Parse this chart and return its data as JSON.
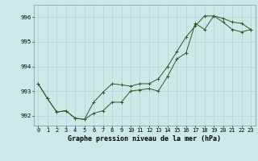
{
  "title": "Graphe pression niveau de la mer (hPa)",
  "bg_color": "#cce8e8",
  "grid_color": "#aed4d4",
  "line_color": "#2d5a27",
  "x_labels": [
    "0",
    "1",
    "2",
    "3",
    "4",
    "5",
    "6",
    "7",
    "8",
    "9",
    "10",
    "11",
    "12",
    "13",
    "14",
    "15",
    "16",
    "17",
    "18",
    "19",
    "20",
    "21",
    "22",
    "23"
  ],
  "ylim": [
    991.6,
    996.5
  ],
  "yticks": [
    992,
    993,
    994,
    995,
    996
  ],
  "series1": [
    993.3,
    992.7,
    992.15,
    992.2,
    991.9,
    991.85,
    992.1,
    992.2,
    992.55,
    992.55,
    993.0,
    993.05,
    993.1,
    993.0,
    993.6,
    994.3,
    994.55,
    995.75,
    995.5,
    996.05,
    995.95,
    995.8,
    995.75,
    995.5
  ],
  "series2": [
    993.3,
    992.7,
    992.15,
    992.2,
    991.9,
    991.85,
    992.55,
    992.95,
    993.3,
    993.25,
    993.2,
    993.3,
    993.3,
    993.5,
    994.0,
    994.6,
    995.2,
    995.65,
    996.05,
    996.05,
    995.8,
    995.5,
    995.4,
    995.5
  ],
  "ylabel_fontsize": 5.5,
  "xlabel_fontsize": 5.5,
  "tick_fontsize": 5.0,
  "title_fontsize": 6.0
}
